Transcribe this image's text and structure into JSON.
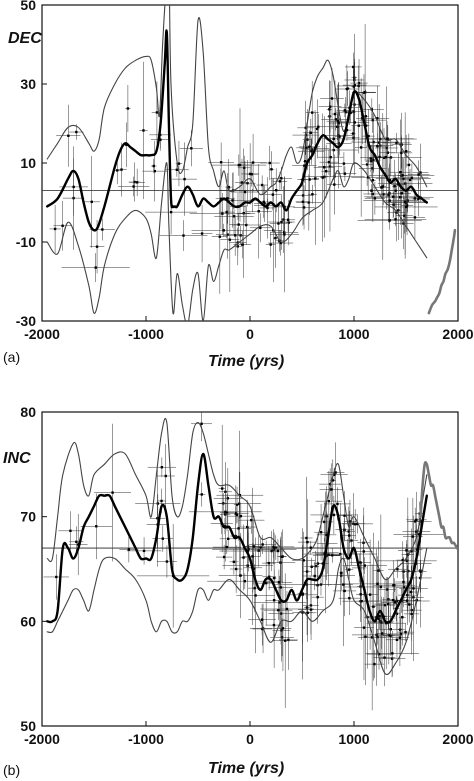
{
  "chart_data": [
    {
      "type": "line",
      "panel": "(a)",
      "ylabel": "DEC",
      "xlabel": "Time (yrs)",
      "xlim": [
        -2000,
        2000
      ],
      "ylim": [
        -30,
        50
      ],
      "xticks": [
        "-2000",
        "-1000",
        "0",
        "1000",
        "2000"
      ],
      "yticks": [
        "-30",
        "-10",
        "10",
        "30",
        "50"
      ],
      "reference_line": 3,
      "series": [
        {
          "role": "model-mean",
          "color": "#000000",
          "x": [
            -1950,
            -1850,
            -1750,
            -1700,
            -1650,
            -1600,
            -1550,
            -1500,
            -1460,
            -1400,
            -1350,
            -1300,
            -1250,
            -1200,
            -1150,
            -1100,
            -1050,
            -1000,
            -950,
            -900,
            -860,
            -820,
            -800,
            -780,
            -760,
            -740,
            -720,
            -700,
            -650,
            -600,
            -550,
            -500,
            -450,
            -400,
            -350,
            -300,
            -250,
            -200,
            -150,
            -100,
            -50,
            0,
            50,
            100,
            150,
            200,
            250,
            300,
            350,
            400,
            450,
            500,
            550,
            600,
            650,
            700,
            750,
            800,
            850,
            900,
            950,
            1000,
            1050,
            1100,
            1150,
            1200,
            1250,
            1300,
            1350,
            1400,
            1450,
            1500,
            1550,
            1600,
            1650,
            1700
          ],
          "y": [
            -1,
            1,
            6,
            8,
            6,
            0,
            -5,
            -7,
            -6,
            -1,
            4,
            9,
            13,
            15,
            14,
            13,
            12,
            12,
            12,
            13,
            20,
            35,
            43,
            20,
            1,
            -1,
            -1,
            -1,
            2,
            4,
            2,
            -1,
            1,
            0,
            -1,
            0,
            1,
            0,
            -1,
            -1,
            0,
            0,
            1,
            0,
            -1,
            0,
            -1,
            0,
            -2,
            1,
            3,
            5,
            10,
            12,
            15,
            17,
            16,
            15,
            14,
            16,
            22,
            28,
            26,
            20,
            14,
            12,
            9,
            7,
            5,
            6,
            4,
            3,
            4,
            2,
            1,
            0
          ]
        },
        {
          "role": "upper-bound",
          "color": "#444444",
          "x": [
            -1950,
            -1850,
            -1750,
            -1650,
            -1550,
            -1500,
            -1450,
            -1400,
            -1300,
            -1200,
            -1100,
            -1000,
            -950,
            -900,
            -870,
            -840,
            -800,
            -780,
            -760,
            -700,
            -650,
            -600,
            -550,
            -500,
            -450,
            -400,
            -350,
            -300,
            -250,
            -200,
            -100,
            0,
            100,
            200,
            250,
            300,
            350,
            400,
            450,
            500,
            550,
            600,
            650,
            700,
            750,
            800,
            850,
            900,
            950,
            1000,
            1100,
            1200,
            1300,
            1400,
            1500,
            1600,
            1700
          ],
          "y": [
            11,
            15,
            19,
            19,
            15,
            13,
            16,
            24,
            30,
            34,
            36,
            37,
            36,
            29,
            22,
            40,
            58,
            62,
            30,
            10,
            8,
            14,
            20,
            46,
            38,
            14,
            8,
            4,
            8,
            3,
            4,
            6,
            2,
            4,
            5,
            8,
            12,
            14,
            10,
            12,
            20,
            28,
            32,
            34,
            36,
            32,
            24,
            18,
            22,
            28,
            26,
            22,
            16,
            16,
            12,
            9,
            4
          ]
        },
        {
          "role": "lower-bound",
          "color": "#444444",
          "x": [
            -1950,
            -1850,
            -1750,
            -1650,
            -1550,
            -1500,
            -1450,
            -1400,
            -1300,
            -1200,
            -1100,
            -1000,
            -950,
            -900,
            -850,
            -800,
            -780,
            -740,
            -700,
            -650,
            -600,
            -550,
            -500,
            -450,
            -400,
            -350,
            -300,
            -250,
            -200,
            -100,
            0,
            100,
            200,
            300,
            400,
            500,
            600,
            700,
            800,
            850,
            900,
            950,
            1000,
            1100,
            1200,
            1300,
            1400,
            1500,
            1600,
            1700
          ],
          "y": [
            -10,
            -13,
            -5,
            -11,
            -21,
            -28,
            -24,
            -16,
            -8,
            -4,
            -2,
            -4,
            -8,
            -14,
            0,
            10,
            -6,
            -28,
            -18,
            -26,
            -31,
            -22,
            -18,
            -30,
            -16,
            -20,
            -16,
            -12,
            -12,
            -10,
            -8,
            -6,
            -6,
            -10,
            -8,
            -4,
            -2,
            0,
            6,
            8,
            4,
            6,
            10,
            8,
            4,
            0,
            -2,
            -6,
            -10,
            -14
          ]
        },
        {
          "role": "recent-data",
          "color": "#777777",
          "x": [
            1720,
            1750,
            1780,
            1800,
            1820,
            1840,
            1860,
            1880,
            1900,
            1920,
            1940,
            1960,
            1970
          ],
          "y": [
            -28,
            -26,
            -25,
            -24,
            -23,
            -21,
            -20,
            -18,
            -17,
            -15,
            -12,
            -9,
            -7
          ]
        }
      ]
    },
    {
      "type": "line",
      "panel": "(b)",
      "ylabel": "INC",
      "xlabel": "Time (yrs)",
      "xlim": [
        -2000,
        2000
      ],
      "ylim": [
        50,
        80
      ],
      "xticks": [
        "-2000",
        "-1000",
        "0",
        "1000",
        "2000"
      ],
      "yticks": [
        "50",
        "60",
        "70",
        "80"
      ],
      "reference_line": 67,
      "series": [
        {
          "role": "model-mean",
          "color": "#000000",
          "x": [
            -1950,
            -1900,
            -1850,
            -1800,
            -1750,
            -1700,
            -1650,
            -1600,
            -1550,
            -1500,
            -1450,
            -1400,
            -1350,
            -1300,
            -1250,
            -1200,
            -1150,
            -1100,
            -1050,
            -1000,
            -950,
            -900,
            -850,
            -800,
            -750,
            -700,
            -650,
            -600,
            -550,
            -500,
            -450,
            -400,
            -350,
            -300,
            -250,
            -200,
            -150,
            -100,
            -50,
            0,
            50,
            100,
            150,
            200,
            250,
            300,
            350,
            400,
            450,
            500,
            550,
            600,
            650,
            700,
            750,
            800,
            850,
            900,
            950,
            1000,
            1050,
            1100,
            1150,
            1200,
            1250,
            1300,
            1350,
            1400,
            1450,
            1500,
            1550,
            1600,
            1650,
            1700
          ],
          "y": [
            60,
            60,
            61,
            67,
            67,
            66,
            67,
            69,
            70,
            71,
            72,
            72,
            72,
            71,
            70,
            69,
            68,
            67,
            66,
            66,
            66,
            68,
            71,
            70,
            65,
            64,
            64,
            65,
            68,
            73,
            76,
            73,
            70,
            70,
            69,
            69,
            68,
            68,
            67,
            66,
            64,
            63,
            64,
            64,
            63,
            62,
            62,
            63,
            62,
            63,
            64,
            64,
            64,
            65,
            68,
            71,
            70,
            67,
            66,
            67,
            65,
            63,
            61,
            60,
            61,
            60,
            60,
            61,
            62,
            63,
            64,
            66,
            69,
            72
          ]
        },
        {
          "role": "upper-bound",
          "color": "#444444",
          "x": [
            -1950,
            -1900,
            -1850,
            -1800,
            -1700,
            -1650,
            -1600,
            -1550,
            -1500,
            -1400,
            -1300,
            -1200,
            -1100,
            -1000,
            -950,
            -900,
            -850,
            -800,
            -750,
            -700,
            -650,
            -600,
            -550,
            -500,
            -450,
            -400,
            -350,
            -300,
            -200,
            -100,
            0,
            100,
            200,
            300,
            400,
            500,
            600,
            650,
            700,
            750,
            800,
            850,
            900,
            950,
            1000,
            1100,
            1200,
            1300,
            1400,
            1500,
            1600,
            1650,
            1700
          ],
          "y": [
            66,
            66,
            70,
            74,
            77,
            76,
            73,
            72,
            74,
            75,
            76,
            76,
            74,
            72,
            70,
            74,
            78,
            79,
            72,
            70,
            71,
            74,
            78,
            79,
            78,
            76,
            74,
            73,
            73,
            72,
            71,
            68,
            68,
            67,
            66,
            66,
            67,
            68,
            70,
            72,
            74,
            75,
            72,
            69,
            70,
            68,
            66,
            64,
            65,
            66,
            68,
            71,
            74
          ]
        },
        {
          "role": "lower-bound",
          "color": "#444444",
          "x": [
            -1950,
            -1900,
            -1850,
            -1800,
            -1750,
            -1700,
            -1650,
            -1600,
            -1550,
            -1500,
            -1450,
            -1400,
            -1300,
            -1200,
            -1100,
            -1000,
            -950,
            -900,
            -850,
            -800,
            -750,
            -700,
            -650,
            -600,
            -550,
            -500,
            -450,
            -400,
            -350,
            -300,
            -200,
            -100,
            0,
            100,
            200,
            300,
            400,
            500,
            600,
            700,
            800,
            850,
            900,
            950,
            1000,
            1100,
            1200,
            1300,
            1400,
            1500,
            1600,
            1700
          ],
          "y": [
            59,
            59,
            60,
            61,
            62,
            63,
            63,
            62,
            61,
            63,
            65,
            66,
            66,
            65,
            64,
            62,
            60,
            59,
            60,
            60,
            59,
            59,
            60,
            60,
            61,
            63,
            63,
            62,
            63,
            63,
            64,
            63,
            62,
            60,
            58,
            60,
            60,
            61,
            60,
            61,
            62,
            65,
            66,
            64,
            62,
            61,
            58,
            55,
            56,
            58,
            62,
            67
          ]
        },
        {
          "role": "recent-data",
          "color": "#777777",
          "x": [
            1640,
            1660,
            1680,
            1700,
            1720,
            1740,
            1760,
            1780,
            1800,
            1820,
            1840,
            1860,
            1880,
            1900,
            1920,
            1940,
            1960,
            1980,
            1990
          ],
          "y": [
            70,
            73,
            75,
            75,
            74,
            73,
            73,
            72,
            71,
            70,
            69,
            69,
            68,
            68,
            68,
            67.5,
            67.5,
            67.2,
            67
          ]
        }
      ]
    }
  ]
}
